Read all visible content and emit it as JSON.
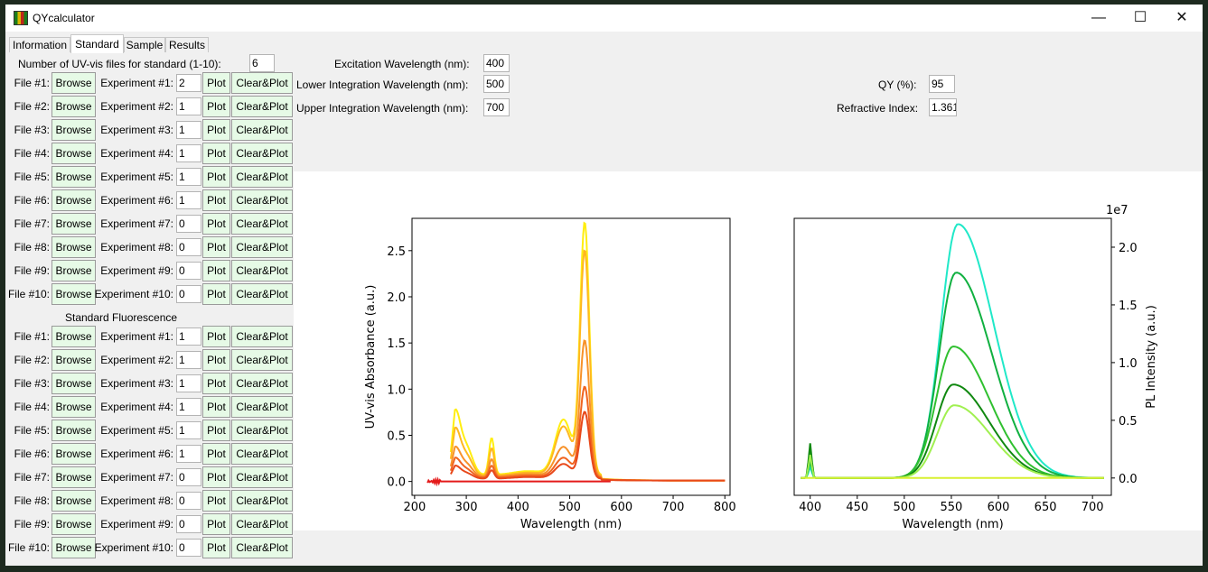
{
  "window": {
    "title": "QYcalculator",
    "minimize": "—",
    "maximize": "☐",
    "close": "✕"
  },
  "tabs": [
    "Information",
    "Standard",
    "Sample",
    "Results"
  ],
  "uvvis": {
    "count_label": "Number of UV-vis files for standard (1-10):",
    "count_value": "6"
  },
  "params": {
    "excitation_label": "Excitation Wavelength (nm):",
    "excitation_value": "400",
    "lower_label": "Lower Integration Wavelength (nm):",
    "lower_value": "500",
    "upper_label": "Upper Integration Wavelength (nm):",
    "upper_value": "700",
    "qy_label": "QY (%):",
    "qy_value": "95",
    "ri_label": "Refractive Index:",
    "ri_value": "1.361"
  },
  "buttons": {
    "browse": "Browse",
    "plot": "Plot",
    "clear": "Clear&Plot"
  },
  "fluorescence_header": "Standard Fluorescence",
  "uv_rows": [
    {
      "file": "File #1:",
      "exp": "Experiment #1:",
      "value": "2"
    },
    {
      "file": "File #2:",
      "exp": "Experiment #2:",
      "value": "1"
    },
    {
      "file": "File #3:",
      "exp": "Experiment #3:",
      "value": "1"
    },
    {
      "file": "File #4:",
      "exp": "Experiment #4:",
      "value": "1"
    },
    {
      "file": "File #5:",
      "exp": "Experiment #5:",
      "value": "1"
    },
    {
      "file": "File #6:",
      "exp": "Experiment #6:",
      "value": "1"
    },
    {
      "file": "File #7:",
      "exp": "Experiment #7:",
      "value": "0"
    },
    {
      "file": "File #8:",
      "exp": "Experiment #8:",
      "value": "0"
    },
    {
      "file": "File #9:",
      "exp": "Experiment #9:",
      "value": "0"
    },
    {
      "file": "File #10:",
      "exp": "Experiment #10:",
      "value": "0"
    }
  ],
  "fl_rows": [
    {
      "file": "File #1:",
      "exp": "Experiment #1:",
      "value": "1"
    },
    {
      "file": "File #2:",
      "exp": "Experiment #2:",
      "value": "1"
    },
    {
      "file": "File #3:",
      "exp": "Experiment #3:",
      "value": "1"
    },
    {
      "file": "File #4:",
      "exp": "Experiment #4:",
      "value": "1"
    },
    {
      "file": "File #5:",
      "exp": "Experiment #5:",
      "value": "1"
    },
    {
      "file": "File #6:",
      "exp": "Experiment #6:",
      "value": "1"
    },
    {
      "file": "File #7:",
      "exp": "Experiment #7:",
      "value": "0"
    },
    {
      "file": "File #8:",
      "exp": "Experiment #8:",
      "value": "0"
    },
    {
      "file": "File #9:",
      "exp": "Experiment #9:",
      "value": "0"
    },
    {
      "file": "File #10:",
      "exp": "Experiment #10:",
      "value": "0"
    }
  ],
  "chart_data": [
    {
      "type": "line",
      "xlabel": "Wavelength (nm)",
      "ylabel": "UV-vis Absorbance (a.u.)",
      "xlim": [
        195,
        810
      ],
      "ylim": [
        -0.15,
        2.85
      ],
      "xticks": [
        200,
        300,
        400,
        500,
        600,
        700,
        800
      ],
      "yticks": [
        0.0,
        0.5,
        1.0,
        1.5,
        2.0,
        2.5
      ],
      "series": [
        {
          "color": "#ffee10",
          "peak": 2.72,
          "shoulder": 0.65,
          "s350": 0.4,
          "base": 0.07,
          "xstart": 270,
          "xend": 800
        },
        {
          "color": "#ffb820",
          "peak": 2.43,
          "shoulder": 0.48,
          "s350": 0.3,
          "base": 0.06,
          "xstart": 270,
          "xend": 800
        },
        {
          "color": "#f7922a",
          "peak": 1.47,
          "shoulder": 0.3,
          "s350": 0.19,
          "base": 0.05,
          "xstart": 270,
          "xend": 800
        },
        {
          "color": "#f06420",
          "peak": 0.98,
          "shoulder": 0.2,
          "s350": 0.13,
          "base": 0.04,
          "xstart": 270,
          "xend": 800
        },
        {
          "color": "#e8481a",
          "peak": 0.72,
          "shoulder": 0.13,
          "s350": 0.09,
          "base": 0.03,
          "xstart": 270,
          "xend": 800
        },
        {
          "color": "#e41a1a",
          "peak": 0.0,
          "shoulder": 0.0,
          "s350": 0.0,
          "base": 0.0,
          "xstart": 225,
          "xend": 580
        }
      ]
    },
    {
      "type": "line",
      "xlabel": "Wavelength (nm)",
      "ylabel": "PL Intensity (a.u.)",
      "offset_text": "1e7",
      "xlim": [
        383,
        720
      ],
      "ylim": [
        -0.15,
        2.25
      ],
      "xticks": [
        400,
        450,
        500,
        550,
        600,
        650,
        700
      ],
      "yticks": [
        0.0,
        0.5,
        1.0,
        1.5,
        2.0
      ],
      "ytick_labels": [
        "0.0",
        "0.5",
        "1.0",
        "1.5",
        "2.0"
      ],
      "series": [
        {
          "color": "#20e8c8",
          "peak": 2.2,
          "center": 557,
          "spike": 0.1
        },
        {
          "color": "#10b040",
          "peak": 1.78,
          "center": 555,
          "spike": 0.15
        },
        {
          "color": "#30c030",
          "peak": 1.14,
          "center": 552,
          "spike": 0.25
        },
        {
          "color": "#108810",
          "peak": 0.81,
          "center": 552,
          "spike": 0.3
        },
        {
          "color": "#a0f050",
          "peak": 0.63,
          "center": 553,
          "spike": 0.2
        },
        {
          "color": "#d8f030",
          "peak": 0.0,
          "center": 550,
          "spike": 0.0
        }
      ]
    }
  ]
}
